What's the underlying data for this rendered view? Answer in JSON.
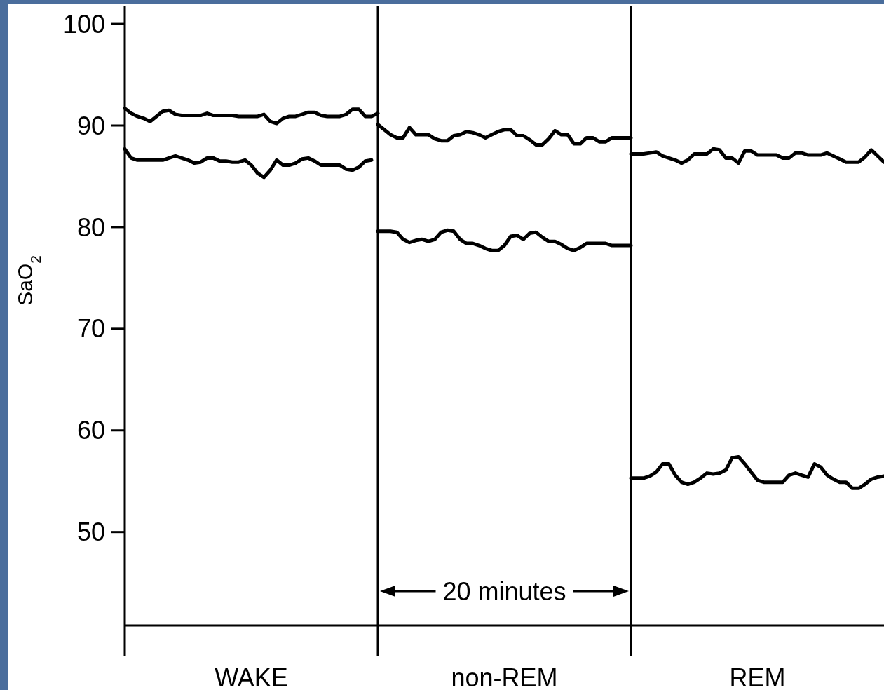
{
  "chart_data": {
    "type": "line",
    "ylabel": "SaO$_{2}$",
    "ylim": [
      40.8,
      101.8
    ],
    "yticks": [
      50,
      60,
      70,
      80,
      90,
      100
    ],
    "annotations": [
      "20 minutes"
    ],
    "categories": [
      null,
      null,
      null,
      null,
      null,
      null,
      null,
      null,
      null,
      null,
      null,
      null,
      null,
      null,
      null,
      null,
      null,
      null,
      null,
      null,
      "WAKE",
      null,
      null,
      null,
      null,
      null,
      null,
      null,
      null,
      null,
      null,
      null,
      null,
      null,
      null,
      null,
      null,
      null,
      null,
      null,
      null,
      null,
      null,
      null,
      null,
      null,
      null,
      null,
      null,
      null,
      null,
      null,
      null,
      null,
      null,
      null,
      null,
      null,
      null,
      null,
      "non-REM",
      null,
      null,
      null,
      null,
      null,
      null,
      null,
      null,
      null,
      null,
      null,
      null,
      null,
      null,
      null,
      null,
      null,
      null,
      null,
      null,
      null,
      null,
      null,
      null,
      null,
      null,
      null,
      null,
      null,
      null,
      null,
      null,
      null,
      null,
      null,
      null,
      null,
      null,
      null,
      "REM",
      null,
      null,
      null,
      null,
      null,
      null,
      null,
      null,
      null,
      null,
      null,
      null,
      null,
      null,
      null,
      null,
      null,
      null,
      null,
      null
    ],
    "series": [
      {
        "color": "#000000",
        "values": [
          91.7,
          91.2,
          90.9,
          90.7,
          90.4,
          90.9,
          91.4,
          91.5,
          91.1,
          91.0,
          91.0,
          91.0,
          91.0,
          91.2,
          91.0,
          91.0,
          91.0,
          91.0,
          90.9,
          90.9,
          90.9,
          90.9,
          91.1,
          90.4,
          90.2,
          90.7,
          90.9,
          90.9,
          91.1,
          91.3,
          91.3,
          91.0,
          90.9,
          90.9,
          90.9,
          91.1,
          91.6,
          91.6,
          90.9,
          90.9,
          91.2,
          null,
          null,
          null,
          null,
          null,
          null,
          null,
          null,
          null,
          null,
          null,
          null,
          null,
          null,
          null,
          null,
          null,
          null,
          null,
          null,
          null,
          null,
          null,
          null,
          null,
          null,
          null,
          null,
          null,
          null,
          null,
          null,
          null,
          null,
          null,
          null,
          null,
          null,
          null,
          null,
          null,
          null,
          null,
          null,
          null,
          null,
          null,
          null,
          null,
          null,
          null,
          null,
          null,
          null,
          null,
          null,
          null,
          null,
          null,
          null,
          null,
          null,
          null,
          null,
          null,
          null,
          null,
          null,
          null,
          null,
          null,
          null,
          null,
          null,
          null,
          null,
          null,
          null,
          null,
          null
        ]
      },
      {
        "color": "#000000",
        "values": [
          87.7,
          86.8,
          86.6,
          86.6,
          86.6,
          86.6,
          86.6,
          86.8,
          87.0,
          86.8,
          86.6,
          86.3,
          86.4,
          86.8,
          86.8,
          86.5,
          86.5,
          86.4,
          86.4,
          86.6,
          86.1,
          85.3,
          84.9,
          85.6,
          86.6,
          86.1,
          86.1,
          86.3,
          86.7,
          86.8,
          86.5,
          86.1,
          86.1,
          86.1,
          86.1,
          85.7,
          85.6,
          85.9,
          86.5,
          86.6,
          null,
          null,
          null,
          null,
          null,
          null,
          null,
          null,
          null,
          null,
          null,
          null,
          null,
          null,
          null,
          null,
          null,
          null,
          null,
          null,
          null,
          null,
          null,
          null,
          null,
          null,
          null,
          null,
          null,
          null,
          null,
          null,
          null,
          null,
          null,
          null,
          null,
          null,
          null,
          null,
          null,
          null,
          null,
          null,
          null,
          null,
          null,
          null,
          null,
          null,
          null,
          null,
          null,
          null,
          null,
          null,
          null,
          null,
          null,
          null,
          null,
          null,
          null,
          null,
          null,
          null,
          null,
          null,
          null,
          null,
          null,
          null,
          null,
          null,
          null,
          null,
          null,
          null,
          null,
          null,
          null
        ]
      },
      {
        "color": "#000000",
        "values": [
          null,
          null,
          null,
          null,
          null,
          null,
          null,
          null,
          null,
          null,
          null,
          null,
          null,
          null,
          null,
          null,
          null,
          null,
          null,
          null,
          null,
          null,
          null,
          null,
          null,
          null,
          null,
          null,
          null,
          null,
          null,
          null,
          null,
          null,
          null,
          null,
          null,
          null,
          null,
          null,
          90.1,
          89.6,
          89.1,
          88.8,
          88.8,
          89.8,
          89.1,
          89.1,
          89.1,
          88.7,
          88.5,
          88.5,
          89.0,
          89.1,
          89.4,
          89.3,
          89.1,
          88.8,
          89.1,
          89.4,
          89.6,
          89.6,
          89.0,
          89.0,
          88.6,
          88.1,
          88.1,
          88.7,
          89.5,
          89.1,
          89.1,
          88.2,
          88.2,
          88.8,
          88.8,
          88.4,
          88.4,
          88.8,
          88.8,
          88.8,
          88.8,
          null,
          null,
          null,
          null,
          null,
          null,
          null,
          null,
          null,
          null,
          null,
          null,
          null,
          null,
          null,
          null,
          null,
          null,
          null,
          null,
          null,
          null,
          null,
          null,
          null,
          null,
          null,
          null,
          null,
          null,
          null,
          null,
          null,
          null,
          null,
          null,
          null,
          null,
          null,
          null
        ]
      },
      {
        "color": "#000000",
        "values": [
          null,
          null,
          null,
          null,
          null,
          null,
          null,
          null,
          null,
          null,
          null,
          null,
          null,
          null,
          null,
          null,
          null,
          null,
          null,
          null,
          null,
          null,
          null,
          null,
          null,
          null,
          null,
          null,
          null,
          null,
          null,
          null,
          null,
          null,
          null,
          null,
          null,
          null,
          null,
          null,
          79.6,
          79.6,
          79.6,
          79.5,
          78.8,
          78.5,
          78.7,
          78.8,
          78.6,
          78.8,
          79.5,
          79.7,
          79.6,
          78.8,
          78.4,
          78.4,
          78.2,
          77.9,
          77.7,
          77.7,
          78.2,
          79.1,
          79.2,
          78.8,
          79.4,
          79.5,
          79.0,
          78.6,
          78.6,
          78.3,
          77.9,
          77.7,
          78.0,
          78.4,
          78.4,
          78.4,
          78.4,
          78.2,
          78.2,
          78.2,
          78.2,
          null,
          null,
          null,
          null,
          null,
          null,
          null,
          null,
          null,
          null,
          null,
          null,
          null,
          null,
          null,
          null,
          null,
          null,
          null,
          null,
          null,
          null,
          null,
          null,
          null,
          null,
          null,
          null,
          null,
          null,
          null,
          null,
          null,
          null,
          null,
          null,
          null,
          null,
          null,
          null
        ]
      },
      {
        "color": "#000000",
        "values": [
          null,
          null,
          null,
          null,
          null,
          null,
          null,
          null,
          null,
          null,
          null,
          null,
          null,
          null,
          null,
          null,
          null,
          null,
          null,
          null,
          null,
          null,
          null,
          null,
          null,
          null,
          null,
          null,
          null,
          null,
          null,
          null,
          null,
          null,
          null,
          null,
          null,
          null,
          null,
          null,
          null,
          null,
          null,
          null,
          null,
          null,
          null,
          null,
          null,
          null,
          null,
          null,
          null,
          null,
          null,
          null,
          null,
          null,
          null,
          null,
          null,
          null,
          null,
          null,
          null,
          null,
          null,
          null,
          null,
          null,
          null,
          null,
          null,
          null,
          null,
          null,
          null,
          null,
          null,
          null,
          87.2,
          87.2,
          87.2,
          87.3,
          87.4,
          87.0,
          86.8,
          86.6,
          86.3,
          86.6,
          87.2,
          87.2,
          87.2,
          87.7,
          87.6,
          86.8,
          86.8,
          86.3,
          87.5,
          87.5,
          87.1,
          87.1,
          87.1,
          87.1,
          86.8,
          86.8,
          87.3,
          87.3,
          87.1,
          87.1,
          87.1,
          87.3,
          87.0,
          86.7,
          86.4,
          86.4,
          86.4,
          86.9,
          87.6,
          87.0,
          86.4
        ]
      },
      {
        "color": "#000000",
        "values": [
          null,
          null,
          null,
          null,
          null,
          null,
          null,
          null,
          null,
          null,
          null,
          null,
          null,
          null,
          null,
          null,
          null,
          null,
          null,
          null,
          null,
          null,
          null,
          null,
          null,
          null,
          null,
          null,
          null,
          null,
          null,
          null,
          null,
          null,
          null,
          null,
          null,
          null,
          null,
          null,
          null,
          null,
          null,
          null,
          null,
          null,
          null,
          null,
          null,
          null,
          null,
          null,
          null,
          null,
          null,
          null,
          null,
          null,
          null,
          null,
          null,
          null,
          null,
          null,
          null,
          null,
          null,
          null,
          null,
          null,
          null,
          null,
          null,
          null,
          null,
          null,
          null,
          null,
          null,
          null,
          55.3,
          55.3,
          55.3,
          55.5,
          55.9,
          56.7,
          56.7,
          55.6,
          54.9,
          54.7,
          54.9,
          55.3,
          55.8,
          55.7,
          55.8,
          56.1,
          57.3,
          57.4,
          56.7,
          55.9,
          55.1,
          54.9,
          54.9,
          54.9,
          54.9,
          55.6,
          55.8,
          55.6,
          55.4,
          56.7,
          56.4,
          55.6,
          55.2,
          54.9,
          54.9,
          54.3,
          54.3,
          54.7,
          55.2,
          55.4,
          55.5
        ]
      }
    ]
  }
}
